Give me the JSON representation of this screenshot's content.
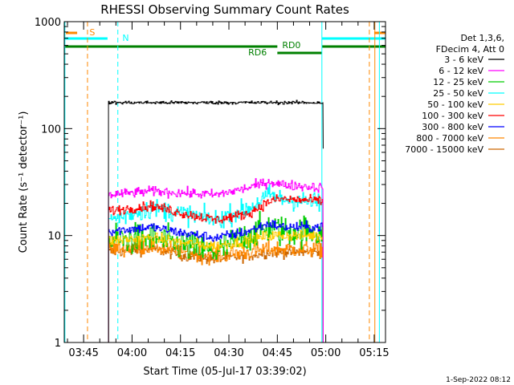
{
  "chart_data": {
    "type": "line",
    "title": "RHESSI Observing Summary Count Rates",
    "xlabel": "Start Time (05-Jul-17 03:39:02)",
    "ylabel": "Count Rate (s⁻¹ detector⁻¹)",
    "yscale": "log",
    "ylim": [
      1,
      1000
    ],
    "xlim_minutes_after_0339": [
      0,
      99.5
    ],
    "x_ticks": [
      "03:45",
      "04:00",
      "04:15",
      "04:30",
      "04:45",
      "05:00",
      "05:15"
    ],
    "y_ticks": [
      "1",
      "10",
      "100",
      "1000"
    ],
    "legend_header": [
      "Det 1,3,6,",
      "FDecim 4, Att 0"
    ],
    "legend_position": "right",
    "series": [
      {
        "name": "3 - 6 keV",
        "color": "#000000",
        "start": 13.7,
        "end": 80.2,
        "level": [
          [
            0,
            175
          ],
          [
            100,
            175
          ]
        ],
        "noise": 0.012,
        "final_drop": 65
      },
      {
        "name": "6 - 12 keV",
        "color": "#ff00ff",
        "start": 13.7,
        "end": 80.2,
        "level": [
          [
            0,
            24
          ],
          [
            20,
            26
          ],
          [
            35,
            25
          ],
          [
            50,
            24
          ],
          [
            65,
            28
          ],
          [
            75,
            32
          ],
          [
            80,
            30
          ],
          [
            100,
            28
          ]
        ],
        "noise": 0.035
      },
      {
        "name": "12 - 25 keV",
        "color": "#00cc00",
        "start": 13.7,
        "end": 80.2,
        "level": [
          [
            0,
            9
          ],
          [
            20,
            9.5
          ],
          [
            35,
            8
          ],
          [
            50,
            7
          ],
          [
            65,
            10
          ],
          [
            75,
            12
          ],
          [
            80,
            11
          ],
          [
            100,
            11
          ]
        ],
        "noise": 0.11
      },
      {
        "name": "25 - 50 keV",
        "color": "#00ffff",
        "start": 13.7,
        "end": 80.2,
        "level": [
          [
            0,
            14
          ],
          [
            20,
            18
          ],
          [
            35,
            16
          ],
          [
            50,
            14
          ],
          [
            65,
            18
          ],
          [
            75,
            24
          ],
          [
            80,
            22
          ],
          [
            100,
            20
          ]
        ],
        "noise": 0.07
      },
      {
        "name": "50 - 100 keV",
        "color": "#ffcc00",
        "start": 13.7,
        "end": 80.2,
        "level": [
          [
            0,
            9
          ],
          [
            20,
            9.5
          ],
          [
            35,
            8.5
          ],
          [
            50,
            8
          ],
          [
            65,
            9
          ],
          [
            75,
            10
          ],
          [
            80,
            10
          ],
          [
            100,
            10
          ]
        ],
        "noise": 0.04
      },
      {
        "name": "100 - 300 keV",
        "color": "#ff0000",
        "start": 13.7,
        "end": 80.2,
        "level": [
          [
            0,
            17
          ],
          [
            20,
            19
          ],
          [
            35,
            16
          ],
          [
            50,
            14
          ],
          [
            65,
            16
          ],
          [
            75,
            21
          ],
          [
            80,
            22
          ],
          [
            100,
            21
          ]
        ],
        "noise": 0.035
      },
      {
        "name": "300 - 800 keV",
        "color": "#0000ff",
        "start": 13.7,
        "end": 80.2,
        "level": [
          [
            0,
            11
          ],
          [
            20,
            12
          ],
          [
            35,
            10.5
          ],
          [
            50,
            9.5
          ],
          [
            65,
            11
          ],
          [
            75,
            13
          ],
          [
            80,
            12
          ],
          [
            100,
            12
          ]
        ],
        "noise": 0.035
      },
      {
        "name": "800 - 7000 keV",
        "color": "#ff8800",
        "start": 13.7,
        "end": 80.2,
        "level": [
          [
            0,
            7.5
          ],
          [
            20,
            8
          ],
          [
            35,
            7
          ],
          [
            50,
            6.5
          ],
          [
            65,
            7
          ],
          [
            75,
            7.5
          ],
          [
            80,
            7.5
          ],
          [
            100,
            7.5
          ]
        ],
        "noise": 0.06,
        "final_drop": 2
      },
      {
        "name": "7000 - 15000 keV",
        "color": "#cc6600",
        "start": 13.7,
        "end": 80.2,
        "level": [
          [
            0,
            7
          ],
          [
            20,
            7.5
          ],
          [
            35,
            6.5
          ],
          [
            50,
            6
          ],
          [
            65,
            6.5
          ],
          [
            75,
            7
          ],
          [
            80,
            7
          ],
          [
            100,
            7
          ]
        ],
        "noise": 0.04
      }
    ],
    "annotations": {
      "S_label": "S",
      "N_label": "N",
      "RD0_label": "RD0",
      "RD6_label": "RD6",
      "saa_intervals": [
        [
          0.5,
          4
        ],
        [
          96,
          99.5
        ]
      ],
      "night_intervals": [
        [
          0,
          13.4
        ],
        [
          79.8,
          99.5
        ]
      ],
      "decimation_rd0": [
        [
          0,
          66
        ],
        [
          79.8,
          99.5
        ]
      ],
      "decimation_rd6": [
        [
          66,
          79.8
        ]
      ],
      "vlines_cyan_solid": [
        0.2,
        79.8,
        97.6
      ],
      "vlines_cyan_dashed": [
        16.6
      ],
      "vlines_orange_dashed": [
        7.2,
        94.5
      ],
      "vlines_orange_solid": [
        96.2
      ],
      "colors": {
        "saa": "#ff8800",
        "night": "#00ffff",
        "decim": "#008000"
      }
    }
  },
  "footer": {
    "date": "1-Sep-2022 08:12"
  }
}
